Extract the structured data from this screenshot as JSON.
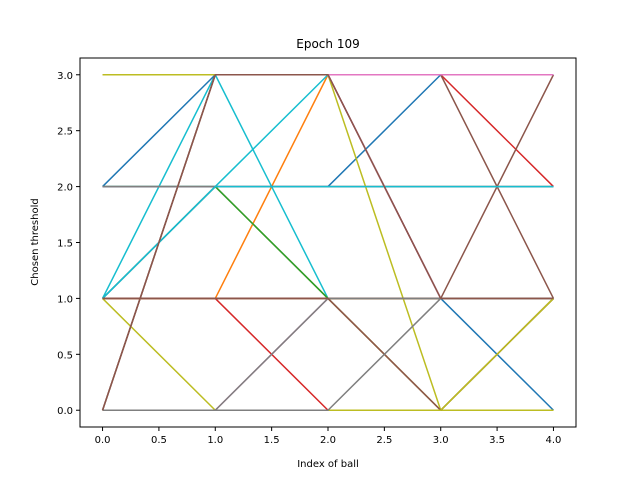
{
  "chart_data": {
    "type": "line",
    "title": "Epoch 109",
    "xlabel": "Index of ball",
    "ylabel": "Chosen threshold",
    "x": [
      0,
      1,
      2,
      3,
      4
    ],
    "xlim": [
      -0.2,
      4.2
    ],
    "ylim": [
      -0.15,
      3.15
    ],
    "xticks": [
      0.0,
      0.5,
      1.0,
      1.5,
      2.0,
      2.5,
      3.0,
      3.5,
      4.0
    ],
    "yticks": [
      0.0,
      0.5,
      1.0,
      1.5,
      2.0,
      2.5,
      3.0
    ],
    "xtick_labels": [
      "0.0",
      "0.5",
      "1.0",
      "1.5",
      "2.0",
      "2.5",
      "3.0",
      "3.5",
      "4.0"
    ],
    "ytick_labels": [
      "0.0",
      "0.5",
      "1.0",
      "1.5",
      "2.0",
      "2.5",
      "3.0"
    ],
    "grid": false,
    "series": [
      {
        "color": "#1f77b4",
        "values": [
          1,
          1,
          1,
          1,
          0
        ]
      },
      {
        "color": "#ff7f0e",
        "values": [
          1,
          1,
          3,
          3,
          3
        ]
      },
      {
        "color": "#2ca02c",
        "values": [
          2,
          2,
          2,
          2,
          2
        ]
      },
      {
        "color": "#d62728",
        "values": [
          1,
          1,
          0,
          0,
          0
        ]
      },
      {
        "color": "#9467bd",
        "values": [
          1,
          2,
          1,
          1,
          1
        ]
      },
      {
        "color": "#8c564b",
        "values": [
          1,
          1,
          1,
          0,
          1
        ]
      },
      {
        "color": "#e377c2",
        "values": [
          0,
          0,
          1,
          1,
          1
        ]
      },
      {
        "color": "#7f7f7f",
        "values": [
          0,
          0,
          0,
          0,
          0
        ]
      },
      {
        "color": "#bcbd22",
        "values": [
          1,
          0,
          0,
          0,
          1
        ]
      },
      {
        "color": "#17becf",
        "values": [
          1,
          3,
          1,
          1,
          1
        ]
      },
      {
        "color": "#1f77b4",
        "values": [
          2,
          3,
          3,
          3,
          3
        ]
      },
      {
        "color": "#ff7f0e",
        "values": [
          3,
          3,
          3,
          3,
          3
        ]
      },
      {
        "color": "#2ca02c",
        "values": [
          1,
          1,
          1,
          1,
          1
        ]
      },
      {
        "color": "#d62728",
        "values": [
          3,
          3,
          3,
          3,
          2
        ]
      },
      {
        "color": "#9467bd",
        "values": [
          3,
          3,
          3,
          1,
          1
        ]
      },
      {
        "color": "#8c564b",
        "values": [
          3,
          3,
          3,
          1,
          3
        ]
      },
      {
        "color": "#e377c2",
        "values": [
          3,
          3,
          3,
          1,
          1
        ]
      },
      {
        "color": "#7f7f7f",
        "values": [
          0,
          3,
          3,
          3,
          3
        ]
      },
      {
        "color": "#bcbd22",
        "values": [
          1,
          2,
          1,
          0,
          0
        ]
      },
      {
        "color": "#17becf",
        "values": [
          2,
          2,
          3,
          3,
          3
        ]
      },
      {
        "color": "#1f77b4",
        "values": [
          1,
          2,
          2,
          3,
          3
        ]
      },
      {
        "color": "#ff7f0e",
        "values": [
          1,
          1,
          1,
          1,
          1
        ]
      },
      {
        "color": "#2ca02c",
        "values": [
          2,
          2,
          1,
          1,
          1
        ]
      },
      {
        "color": "#d62728",
        "values": [
          1,
          1,
          1,
          1,
          1
        ]
      },
      {
        "color": "#9467bd",
        "values": [
          2,
          2,
          2,
          2,
          2
        ]
      },
      {
        "color": "#8c564b",
        "values": [
          0,
          3,
          3,
          3,
          1
        ]
      },
      {
        "color": "#e377c2",
        "values": [
          3,
          3,
          3,
          3,
          3
        ]
      },
      {
        "color": "#7f7f7f",
        "values": [
          2,
          2,
          2,
          2,
          2
        ]
      },
      {
        "color": "#bcbd22",
        "values": [
          3,
          3,
          3,
          0,
          1
        ]
      },
      {
        "color": "#17becf",
        "values": [
          1,
          2,
          2,
          2,
          2
        ]
      },
      {
        "color": "#8c564b",
        "values": [
          1,
          1,
          1,
          1,
          1
        ]
      },
      {
        "color": "#7f7f7f",
        "values": [
          0,
          0,
          1,
          1,
          1
        ]
      },
      {
        "color": "#8c564b",
        "values": [
          1,
          1,
          1,
          0,
          1
        ]
      },
      {
        "color": "#bcbd22",
        "values": [
          0,
          0,
          0,
          0,
          1
        ]
      },
      {
        "color": "#7f7f7f",
        "values": [
          0,
          0,
          0,
          1,
          1
        ]
      },
      {
        "color": "#8c564b",
        "values": [
          0,
          3,
          3,
          1,
          1
        ]
      }
    ]
  }
}
